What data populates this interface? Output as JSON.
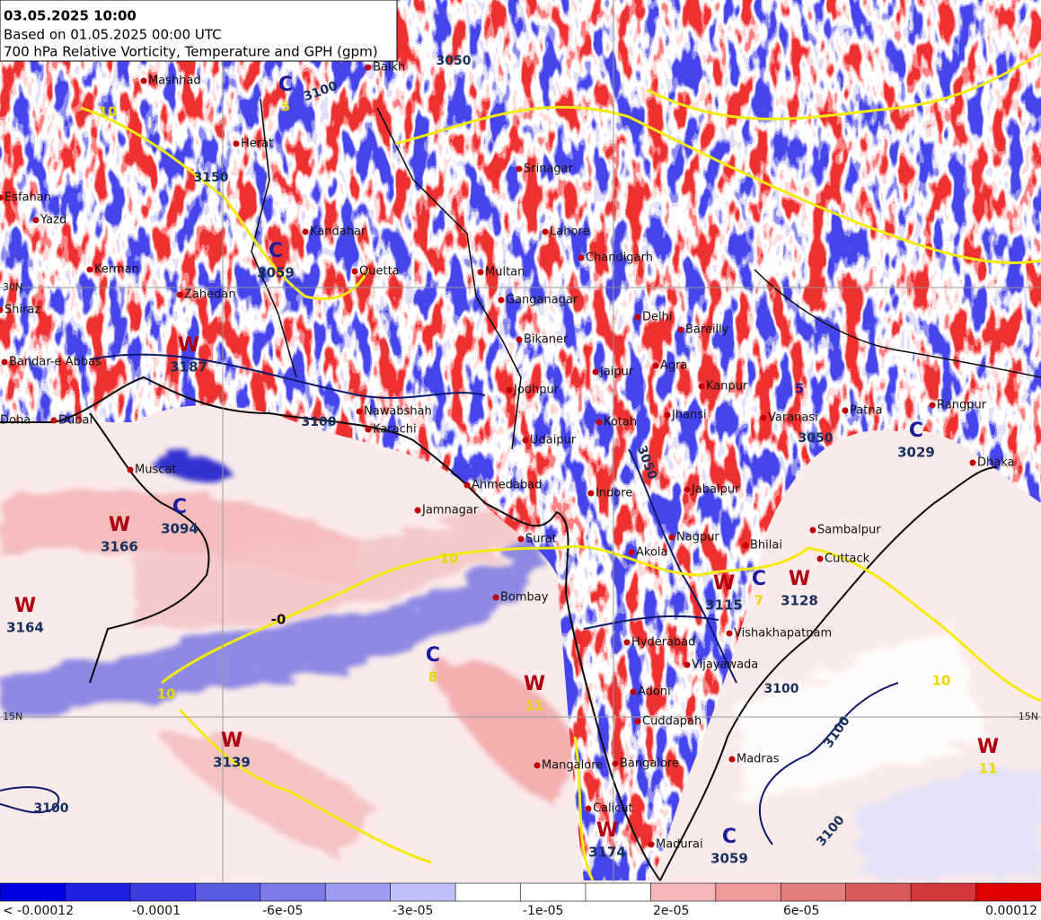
{
  "header": {
    "lines": [
      "03.05.2025 10:00",
      "Based on 01.05.2025 00:00 UTC",
      "700 hPa Relative Vorticity, Temperature and GPH (gpm)"
    ]
  },
  "cities": [
    "Mashhad",
    "Herat",
    "Balkh",
    "Kandahar",
    "Quetta",
    "Kerman",
    "Zahedan",
    "Esfahan",
    "Yazd",
    "Shiraz",
    "Bandar-e Abbas",
    "Doha",
    "Dubai",
    "Muscat",
    "Multan",
    "Ganganagar",
    "Lahore",
    "Chandigarh",
    "Srinagar",
    "Delhi",
    "Bareilly",
    "Bikaner",
    "Jaipur",
    "Agra",
    "Kanpur",
    "Jodhpur",
    "Nawabshah",
    "Karachi",
    "Kotah",
    "Jhansi",
    "Varanasi",
    "Patna",
    "Rangpur",
    "Udaipur",
    "Ahmedabad",
    "Indore",
    "Jabalpur",
    "Jamnagar",
    "Surat",
    "Nagpur",
    "Bhilai",
    "Sambalpur",
    "Cuttack",
    "Akola",
    "Bombay",
    "Hyderabad",
    "Vishakhapatnam",
    "Vijayawada",
    "Adoni",
    "Cuddapah",
    "Madras",
    "Mangalore",
    "Bangalore",
    "Calicut",
    "Madurai",
    "Dhaka"
  ],
  "pressure_systems": [
    {
      "letter": "C",
      "value": "5"
    },
    {
      "letter": "C",
      "value": "3059"
    },
    {
      "letter": "W",
      "value": "3187"
    },
    {
      "letter": "W",
      "value": "3166"
    },
    {
      "letter": "C",
      "value": "3094"
    },
    {
      "letter": "W",
      "value": "3164"
    },
    {
      "letter": "C",
      "value": "8"
    },
    {
      "letter": "W",
      "value": "11"
    },
    {
      "letter": "W",
      "value": "3139"
    },
    {
      "letter": "W",
      "value": "3115"
    },
    {
      "letter": "C",
      "value": "7"
    },
    {
      "letter": "W",
      "value": "3128"
    },
    {
      "letter": "C",
      "value": "3029"
    },
    {
      "letter": "W",
      "value": "3174"
    },
    {
      "letter": "C",
      "value": "3059"
    },
    {
      "letter": "W",
      "value": "11"
    }
  ],
  "gph_labels": [
    "3100",
    "3100",
    "3050",
    "3100",
    "3100",
    "3050",
    "3100",
    "3150",
    "3100",
    "3050"
  ],
  "temperature_labels": [
    "10",
    "10",
    "10",
    "-0",
    "10",
    "5"
  ],
  "latitude_labels": [
    "15N",
    "15N",
    "30N"
  ],
  "colorbar": {
    "labels": [
      "< -0.00012",
      "-0.0001",
      "-6e-05",
      "-3e-05",
      "-1e-05",
      "2e-05",
      "6e-05",
      "0.00012"
    ],
    "colors": [
      "#0000e0",
      "#2020e4",
      "#3c3ce0",
      "#5a5ae0",
      "#7a7ae6",
      "#9c9cf0",
      "#c0c0f8",
      "#ffffff",
      "#ffffff",
      "#ffffff",
      "#f4b8b8",
      "#ee9a9a",
      "#e47c7c",
      "#d85a5a",
      "#d03a3a",
      "#e00000"
    ]
  }
}
